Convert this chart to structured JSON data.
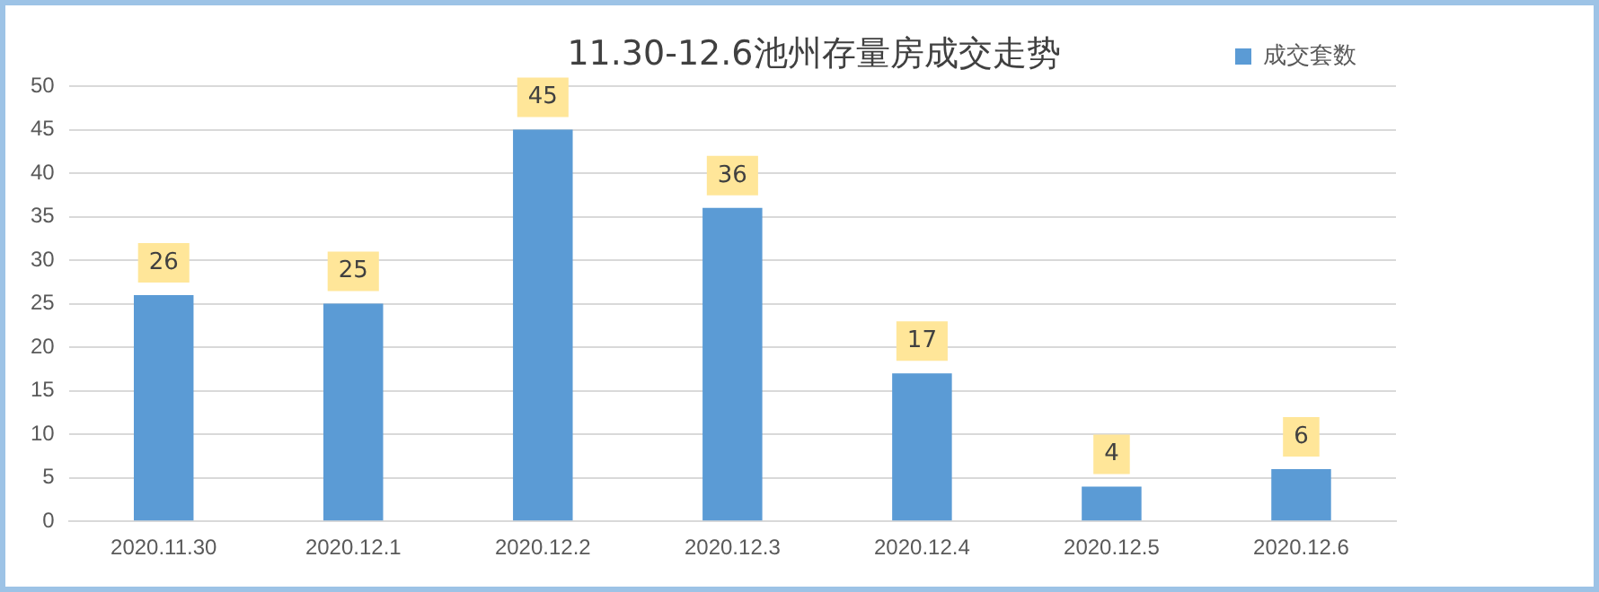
{
  "chart_data": {
    "type": "bar",
    "title": "11.30-12.6池州存量房成交走势",
    "categories": [
      "2020.11.30",
      "2020.12.1",
      "2020.12.2",
      "2020.12.3",
      "2020.12.4",
      "2020.12.5",
      "2020.12.6"
    ],
    "series": [
      {
        "name": "成交套数",
        "color": "#5b9bd5",
        "values": [
          26,
          25,
          45,
          36,
          17,
          4,
          6
        ]
      }
    ],
    "ylim": [
      0,
      50
    ],
    "yticks": [
      0,
      5,
      10,
      15,
      20,
      25,
      30,
      35,
      40,
      45,
      50
    ],
    "grid": "y",
    "legend": "top right",
    "data_labels": true
  }
}
